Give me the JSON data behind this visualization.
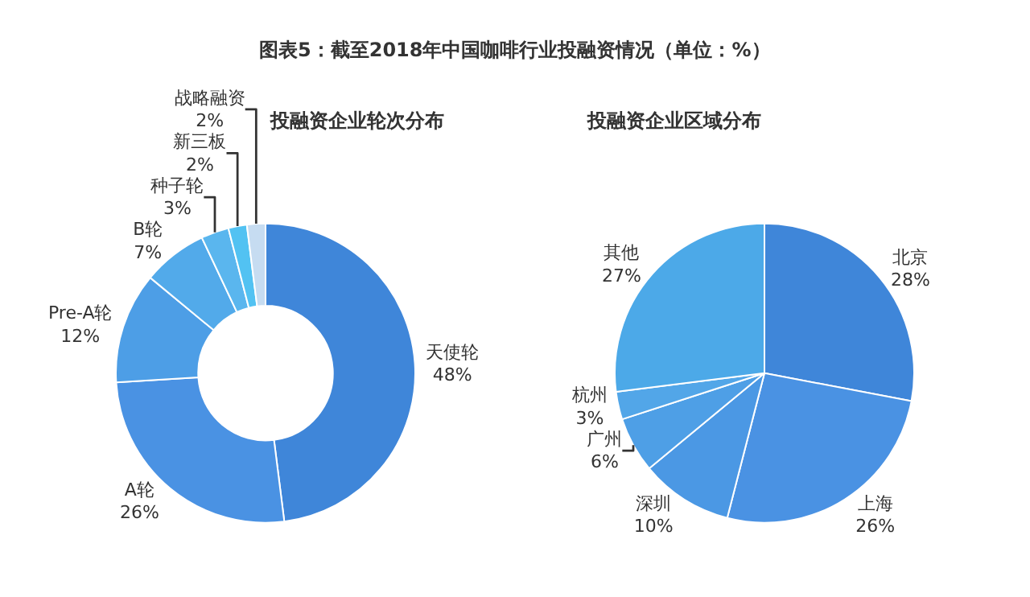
{
  "chart_data": [
    {
      "type": "donut",
      "title": "投融资企业轮次分布",
      "annotations": [
        "图表5：截至2018年中国咖啡行业投融资情况（单位：%）"
      ],
      "categories": [
        "天使轮",
        "A轮",
        "Pre-A轮",
        "B轮",
        "种子轮",
        "新三板",
        "战略融资"
      ],
      "values": [
        48,
        26,
        12,
        7,
        3,
        2,
        2
      ],
      "value_labels": [
        "48%",
        "26%",
        "12%",
        "7%",
        "3%",
        "2%",
        "2%"
      ],
      "colors": [
        "#3f86d9",
        "#4a92e3",
        "#4d9ee6",
        "#52aaea",
        "#5ab6ee",
        "#52c2f2",
        "#c6dcf1"
      ]
    },
    {
      "type": "pie",
      "title": "投融资企业区域分布",
      "categories": [
        "北京",
        "上海",
        "深圳",
        "广州",
        "杭州",
        "其他"
      ],
      "values": [
        28,
        26,
        10,
        6,
        3,
        27
      ],
      "value_labels": [
        "28%",
        "26%",
        "10%",
        "6%",
        "3%",
        "27%"
      ],
      "colors": [
        "#3f86d9",
        "#4a92e3",
        "#4b98e4",
        "#4e9fe6",
        "#52a6e8",
        "#4ca9e8"
      ]
    }
  ]
}
